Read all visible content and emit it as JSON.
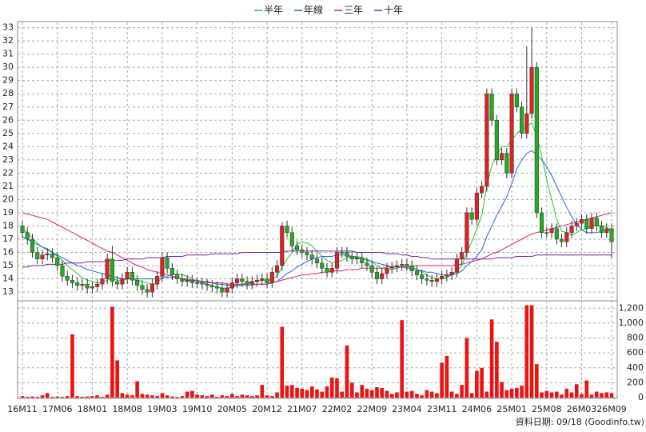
{
  "chart_data": {
    "type": "candlestick",
    "source": "資料日期: 09/18 (Goodinfo.tw)",
    "categories": [
      "16M11",
      null,
      null,
      null,
      null,
      null,
      null,
      "17M06",
      null,
      null,
      null,
      null,
      null,
      null,
      "18M01",
      null,
      null,
      null,
      null,
      null,
      null,
      "18M08",
      null,
      null,
      null,
      null,
      null,
      null,
      "19M03",
      null,
      null,
      null,
      null,
      null,
      null,
      "19M10",
      null,
      null,
      null,
      null,
      null,
      null,
      "20M05",
      null,
      null,
      null,
      null,
      null,
      null,
      "20M12",
      null,
      null,
      null,
      null,
      null,
      null,
      "21M07",
      null,
      null,
      null,
      null,
      null,
      null,
      "22M02",
      null,
      null,
      null,
      null,
      null,
      null,
      "22M09",
      null,
      null,
      null,
      null,
      null,
      null,
      "23M04",
      null,
      null,
      null,
      null,
      null,
      null,
      "23M11",
      null,
      null,
      null,
      null,
      null,
      null,
      "24M06",
      null,
      null,
      null,
      null,
      null,
      null,
      "25M01",
      null,
      null,
      null,
      null,
      null,
      null,
      "25M08",
      null,
      null,
      null,
      null,
      null,
      null,
      "26M03",
      null,
      null,
      null,
      null,
      null,
      "26M09"
    ],
    "open": [
      18.0,
      17.5,
      17.0,
      16.0,
      15.5,
      15.8,
      15.9,
      15.6,
      15.0,
      14.2,
      13.9,
      13.7,
      13.5,
      13.6,
      13.3,
      13.4,
      13.6,
      14.0,
      15.5,
      13.8,
      13.6,
      14.0,
      14.5,
      13.9,
      13.5,
      13.2,
      13.0,
      13.6,
      14.2,
      15.6,
      14.8,
      14.3,
      14.0,
      13.8,
      13.9,
      13.7,
      13.7,
      13.6,
      13.5,
      13.4,
      13.3,
      13.0,
      13.3,
      13.7,
      14.0,
      13.8,
      13.6,
      13.8,
      13.9,
      14.0,
      13.7,
      14.5,
      15.0,
      18.0,
      17.5,
      16.5,
      16.2,
      16.0,
      15.8,
      15.5,
      15.2,
      14.8,
      14.5,
      14.8,
      16.0,
      16.0,
      15.7,
      15.5,
      15.6,
      15.2,
      15.0,
      14.5,
      14.0,
      14.4,
      14.8,
      14.9,
      15.0,
      15.1,
      15.0,
      14.6,
      14.3,
      14.0,
      13.9,
      13.8,
      14.0,
      14.2,
      14.3,
      14.5,
      15.5,
      16.0,
      19.0,
      18.5,
      20.5,
      21.0,
      28.0,
      26.0,
      23.0,
      23.5,
      22.0,
      28.0,
      27.0,
      25.0,
      26.5,
      30.0,
      19.0,
      17.5,
      17.5,
      17.8,
      17.0,
      16.8,
      17.5,
      18.0,
      18.2,
      18.5,
      17.8,
      18.6,
      18.0,
      17.5,
      17.8
    ],
    "high": [
      18.4,
      17.9,
      17.4,
      16.4,
      16.2,
      16.3,
      16.3,
      16.0,
      15.4,
      14.6,
      14.3,
      14.1,
      14.0,
      14.0,
      13.8,
      14.0,
      14.4,
      15.9,
      16.5,
      14.2,
      14.4,
      14.9,
      14.9,
      14.3,
      13.9,
      13.6,
      14.0,
      14.6,
      16.0,
      16.0,
      15.2,
      14.7,
      14.4,
      14.3,
      14.3,
      14.1,
      14.1,
      14.0,
      13.9,
      13.8,
      13.7,
      13.7,
      14.1,
      14.4,
      14.4,
      14.2,
      14.2,
      14.3,
      14.4,
      14.4,
      14.9,
      15.4,
      18.3,
      18.4,
      17.9,
      16.9,
      16.6,
      16.4,
      16.2,
      15.9,
      15.6,
      15.2,
      15.2,
      16.4,
      16.4,
      16.4,
      16.1,
      16.0,
      16.0,
      15.6,
      15.4,
      14.9,
      14.8,
      15.2,
      15.3,
      15.4,
      15.5,
      15.5,
      15.4,
      15.0,
      14.7,
      14.4,
      14.3,
      14.4,
      14.6,
      14.7,
      14.9,
      15.9,
      16.4,
      19.4,
      19.4,
      20.9,
      21.4,
      28.4,
      28.4,
      26.4,
      23.9,
      23.9,
      28.4,
      28.4,
      27.4,
      31.6,
      33.0,
      30.4,
      19.4,
      17.9,
      18.2,
      18.2,
      17.4,
      17.9,
      18.4,
      18.6,
      18.9,
      18.9,
      19.0,
      19.0,
      18.4,
      18.2,
      18.2
    ],
    "low": [
      17.1,
      16.6,
      15.6,
      15.1,
      15.1,
      15.4,
      15.2,
      14.6,
      13.8,
      13.5,
      13.3,
      13.1,
      13.1,
      12.9,
      12.9,
      13.0,
      13.2,
      13.6,
      13.4,
      13.2,
      13.2,
      13.6,
      13.5,
      13.1,
      12.8,
      12.6,
      12.6,
      13.2,
      13.8,
      14.4,
      13.9,
      13.6,
      13.4,
      13.4,
      13.3,
      13.3,
      13.2,
      13.1,
      13.0,
      12.9,
      12.6,
      12.6,
      12.9,
      13.3,
      13.4,
      13.2,
      13.2,
      13.4,
      13.5,
      13.3,
      13.3,
      14.1,
      14.6,
      17.1,
      16.1,
      15.8,
      15.6,
      15.4,
      15.1,
      14.8,
      14.4,
      14.1,
      14.1,
      14.4,
      15.6,
      15.3,
      15.1,
      15.1,
      14.8,
      14.6,
      14.1,
      13.6,
      13.6,
      14.0,
      14.4,
      14.5,
      14.6,
      14.6,
      14.2,
      13.9,
      13.6,
      13.5,
      13.4,
      13.4,
      13.6,
      13.8,
      13.9,
      14.1,
      15.1,
      15.6,
      18.1,
      18.1,
      20.1,
      20.6,
      25.6,
      22.6,
      22.6,
      21.6,
      21.6,
      26.6,
      24.6,
      24.6,
      26.1,
      18.6,
      17.1,
      17.1,
      17.1,
      16.6,
      16.4,
      16.4,
      17.1,
      17.6,
      17.8,
      17.4,
      17.4,
      17.6,
      17.1,
      17.1,
      15.6
    ],
    "close": [
      17.5,
      17.0,
      16.0,
      15.5,
      15.8,
      15.9,
      15.6,
      15.0,
      14.2,
      13.9,
      13.7,
      13.5,
      13.6,
      13.3,
      13.4,
      13.6,
      14.0,
      15.5,
      13.8,
      13.6,
      14.0,
      14.5,
      13.9,
      13.5,
      13.2,
      13.0,
      13.6,
      14.2,
      15.6,
      14.8,
      14.3,
      14.0,
      13.8,
      13.9,
      13.7,
      13.7,
      13.6,
      13.5,
      13.4,
      13.3,
      13.0,
      13.3,
      13.7,
      14.0,
      13.8,
      13.6,
      13.8,
      13.9,
      14.0,
      13.7,
      14.5,
      15.0,
      18.0,
      17.5,
      16.5,
      16.2,
      16.0,
      15.8,
      15.5,
      15.2,
      14.8,
      14.5,
      14.8,
      16.0,
      16.0,
      15.7,
      15.5,
      15.6,
      15.2,
      15.0,
      14.5,
      14.0,
      14.4,
      14.8,
      14.9,
      15.0,
      15.1,
      15.0,
      14.6,
      14.3,
      14.0,
      13.9,
      13.8,
      14.0,
      14.2,
      14.3,
      14.5,
      15.5,
      16.0,
      19.0,
      18.5,
      20.5,
      21.0,
      28.0,
      26.0,
      23.0,
      23.5,
      22.0,
      28.0,
      27.0,
      25.0,
      26.5,
      30.0,
      19.0,
      17.5,
      17.5,
      17.8,
      17.0,
      16.8,
      17.5,
      18.0,
      18.2,
      18.5,
      17.8,
      18.6,
      18.0,
      17.5,
      17.8,
      16.8
    ],
    "up_color": "#dd2222",
    "down_color": "#22aa22",
    "volume": {
      "color": "#ee1111",
      "axis": "y2",
      "values": [
        20,
        10,
        15,
        10,
        30,
        60,
        10,
        15,
        10,
        20,
        850,
        20,
        10,
        15,
        20,
        30,
        10,
        40,
        1220,
        500,
        60,
        40,
        30,
        220,
        50,
        40,
        30,
        20,
        60,
        30,
        15,
        10,
        20,
        80,
        90,
        40,
        30,
        20,
        40,
        10,
        30,
        20,
        50,
        20,
        40,
        30,
        20,
        30,
        170,
        30,
        20,
        70,
        950,
        160,
        170,
        130,
        120,
        100,
        150,
        110,
        80,
        150,
        270,
        260,
        80,
        700,
        200,
        70,
        170,
        120,
        100,
        140,
        130,
        90,
        50,
        70,
        1040,
        80,
        90,
        50,
        30,
        100,
        80,
        60,
        470,
        560,
        80,
        50,
        170,
        800,
        60,
        360,
        400,
        80,
        1050,
        750,
        210,
        100,
        120,
        130,
        160,
        1240,
        1240,
        450,
        70,
        90,
        70,
        80,
        40,
        120,
        70,
        180,
        50,
        230,
        40,
        80,
        60,
        70,
        60
      ]
    },
    "series": [
      {
        "name": "半年",
        "color": "#22cc22",
        "values": [
          17.8,
          17.5,
          17.1,
          16.7,
          16.4,
          16.3,
          16.0,
          15.7,
          15.4,
          15.0,
          14.7,
          14.4,
          14.1,
          13.9,
          13.8,
          13.7,
          13.7,
          13.9,
          14.0,
          13.9,
          13.9,
          14.0,
          14.0,
          13.9,
          13.8,
          13.7,
          13.6,
          13.7,
          14.1,
          14.2,
          14.3,
          14.4,
          14.3,
          14.2,
          14.0,
          13.8,
          13.7,
          13.6,
          13.5,
          13.4,
          13.3,
          13.3,
          13.4,
          13.5,
          13.6,
          13.7,
          13.8,
          13.8,
          13.9,
          13.8,
          14.0,
          14.2,
          14.9,
          15.5,
          16.0,
          16.6,
          16.8,
          16.7,
          16.5,
          16.1,
          15.7,
          15.4,
          15.2,
          15.3,
          15.4,
          15.6,
          15.7,
          15.7,
          15.6,
          15.5,
          15.3,
          15.0,
          14.8,
          14.7,
          14.7,
          14.8,
          14.9,
          15.0,
          14.9,
          14.7,
          14.5,
          14.3,
          14.1,
          14.0,
          14.0,
          14.1,
          14.3,
          14.6,
          15.0,
          16.0,
          16.8,
          17.8,
          18.8,
          21.0,
          22.6,
          23.3,
          24.0,
          24.0,
          24.5,
          25.0,
          25.3,
          25.5,
          25.8,
          24.8,
          23.3,
          21.5,
          20.0,
          18.5,
          17.6,
          17.5,
          17.3,
          17.5,
          17.7,
          17.8,
          18.0,
          18.1,
          18.0,
          17.9,
          17.6
        ]
      },
      {
        "name": "年線",
        "color": "#2266ee",
        "values": [
          17.2,
          17.0,
          16.8,
          16.6,
          16.4,
          16.2,
          16.0,
          15.8,
          15.6,
          15.4,
          15.2,
          15.0,
          14.9,
          14.7,
          14.6,
          14.5,
          14.4,
          14.3,
          14.2,
          14.1,
          14.0,
          14.0,
          14.0,
          14.0,
          14.0,
          14.0,
          14.0,
          14.0,
          14.1,
          14.1,
          14.1,
          14.1,
          14.0,
          13.9,
          13.9,
          13.8,
          13.8,
          13.7,
          13.7,
          13.6,
          13.6,
          13.5,
          13.5,
          13.5,
          13.5,
          13.5,
          13.5,
          13.6,
          13.6,
          13.6,
          13.7,
          13.8,
          14.1,
          14.4,
          14.6,
          14.9,
          15.1,
          15.3,
          15.5,
          15.6,
          15.7,
          15.7,
          15.7,
          15.8,
          15.8,
          15.8,
          15.7,
          15.6,
          15.5,
          15.4,
          15.3,
          15.2,
          15.1,
          15.0,
          14.9,
          14.9,
          14.9,
          14.8,
          14.8,
          14.7,
          14.6,
          14.5,
          14.5,
          14.4,
          14.3,
          14.3,
          14.3,
          14.4,
          14.6,
          15.0,
          15.3,
          15.7,
          16.2,
          17.2,
          18.0,
          18.8,
          19.5,
          20.2,
          21.2,
          22.3,
          23.0,
          23.5,
          23.7,
          23.4,
          23.0,
          22.5,
          21.8,
          21.0,
          20.2,
          19.4,
          18.7,
          18.1,
          17.7,
          17.5,
          17.5,
          17.5,
          17.6,
          17.7,
          17.7
        ]
      },
      {
        "name": "三年",
        "color": "#dd2277",
        "values": [
          19.0,
          18.9,
          18.8,
          18.7,
          18.6,
          18.5,
          18.3,
          18.1,
          17.9,
          17.7,
          17.5,
          17.3,
          17.1,
          16.9,
          16.7,
          16.5,
          16.3,
          16.1,
          16.0,
          15.8,
          15.6,
          15.4,
          15.2,
          15.0,
          14.9,
          14.7,
          14.6,
          14.5,
          14.4,
          14.3,
          14.2,
          14.1,
          14.0,
          14.0,
          13.9,
          13.9,
          13.8,
          13.8,
          13.7,
          13.7,
          13.7,
          13.6,
          13.6,
          13.6,
          13.6,
          13.6,
          13.6,
          13.6,
          13.6,
          13.6,
          13.7,
          13.8,
          13.9,
          14.0,
          14.1,
          14.2,
          14.3,
          14.3,
          14.4,
          14.4,
          14.5,
          14.5,
          14.6,
          14.6,
          14.6,
          14.7,
          14.7,
          14.7,
          14.8,
          14.8,
          14.8,
          14.8,
          14.8,
          14.9,
          14.9,
          14.9,
          14.9,
          14.9,
          14.9,
          15.0,
          15.0,
          15.0,
          15.0,
          15.0,
          15.0,
          15.0,
          15.0,
          15.1,
          15.1,
          15.2,
          15.3,
          15.4,
          15.5,
          15.7,
          15.9,
          16.0,
          16.2,
          16.4,
          16.6,
          16.8,
          17.0,
          17.2,
          17.4,
          17.5,
          17.6,
          17.7,
          17.8,
          17.9,
          18.0,
          18.1,
          18.2,
          18.3,
          18.4,
          18.5,
          18.6,
          18.7,
          18.8,
          18.9,
          19.0
        ]
      },
      {
        "name": "十年",
        "color": "#7722aa",
        "values": [
          14.9,
          14.9,
          15.0,
          15.0,
          15.0,
          15.1,
          15.1,
          15.1,
          15.1,
          15.2,
          15.2,
          15.2,
          15.2,
          15.3,
          15.3,
          15.3,
          15.3,
          15.4,
          15.4,
          15.4,
          15.4,
          15.5,
          15.5,
          15.5,
          15.5,
          15.6,
          15.6,
          15.6,
          15.6,
          15.7,
          15.7,
          15.7,
          15.7,
          15.8,
          15.8,
          15.8,
          15.8,
          15.8,
          15.9,
          15.9,
          15.9,
          15.9,
          15.9,
          15.9,
          16.0,
          16.0,
          16.0,
          16.0,
          16.0,
          16.0,
          16.0,
          16.0,
          16.0,
          16.1,
          16.1,
          16.1,
          16.1,
          16.1,
          16.1,
          16.1,
          16.1,
          16.1,
          16.1,
          16.1,
          16.1,
          16.1,
          16.1,
          16.0,
          16.0,
          16.0,
          16.0,
          16.0,
          16.0,
          15.9,
          15.9,
          15.9,
          15.8,
          15.8,
          15.7,
          15.7,
          15.6,
          15.6,
          15.5,
          15.5,
          15.5,
          15.5,
          15.5,
          15.5,
          15.5,
          15.5,
          15.5,
          15.5,
          15.5,
          15.5,
          15.5,
          15.6,
          15.6,
          15.6,
          15.6,
          15.7,
          15.7,
          15.7,
          15.7,
          15.8,
          15.8,
          15.8,
          15.8,
          15.8,
          15.8,
          15.8,
          15.8,
          15.8,
          15.8,
          15.8,
          15.8,
          15.8,
          15.8,
          15.8,
          15.8
        ]
      }
    ],
    "ylim": [
      12.4,
      33.4
    ],
    "yticks": [
      13,
      14,
      15,
      16,
      17,
      18,
      19,
      20,
      21,
      22,
      23,
      24,
      25,
      26,
      27,
      28,
      29,
      30,
      31,
      32,
      33
    ],
    "y2lim": [
      0,
      1300
    ],
    "y2ticks": [
      0,
      200,
      400,
      600,
      800,
      {
        "value": 1000,
        "label": "1,000"
      },
      {
        "value": 1200,
        "label": "1,200"
      }
    ],
    "grid": true
  }
}
